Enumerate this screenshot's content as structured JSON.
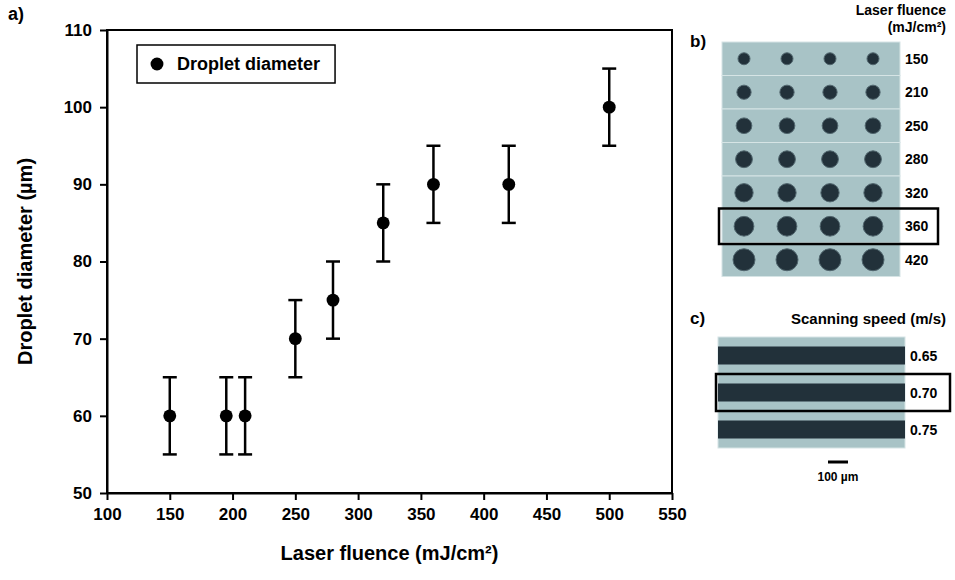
{
  "chart_data": {
    "type": "scatter",
    "annotations": [
      "a)"
    ],
    "x_label": "Laser fluence (mJ/cm²)",
    "y_label": "Droplet diameter (µm)",
    "x": [
      150,
      195,
      210,
      250,
      280,
      320,
      360,
      420,
      500
    ],
    "series": [
      {
        "name": "Droplet diameter",
        "color": "#000000",
        "marker": "circle",
        "values": [
          60,
          60,
          60,
          70,
          75,
          85,
          90,
          90,
          100
        ],
        "errors": [
          5,
          5,
          5,
          5,
          5,
          5,
          5,
          5,
          5
        ]
      }
    ],
    "xlim": [
      100,
      550
    ],
    "xticks": [
      100,
      150,
      200,
      250,
      300,
      350,
      400,
      450,
      500,
      550
    ],
    "ylim": [
      50,
      110
    ],
    "yticks": [
      50,
      60,
      70,
      80,
      90,
      100,
      110
    ],
    "grid": false,
    "legend": "upper left"
  },
  "panel_b": {
    "letter": "b)",
    "title": "Laser fluence (mJ/cm²)",
    "rows": [
      "150",
      "210",
      "250",
      "280",
      "320",
      "360",
      "420"
    ],
    "highlight": "360"
  },
  "panel_c": {
    "letter": "c)",
    "title": "Scanning speed (m/s)",
    "rows": [
      "0.65",
      "0.70",
      "0.75"
    ],
    "highlight": "0.70",
    "scale_bar": "100 µm"
  }
}
